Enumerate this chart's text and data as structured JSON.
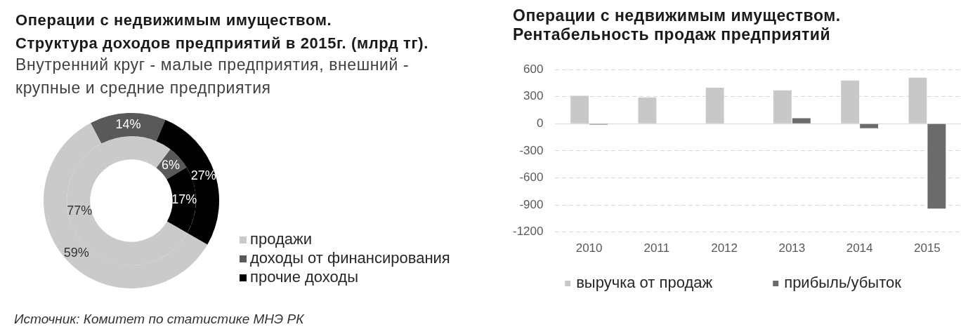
{
  "chart_data": [
    {
      "type": "donut",
      "title": "Операции с недвижимым имуществом.\nСтруктура доходов предприятий в 2015г. (млрд тг).",
      "subtitle": "Внутренний круг - малые предприятия, внешний - крупные и средние предприятия",
      "categories": [
        "продажи",
        "доходы от финансирования",
        "прочие доходы"
      ],
      "colors": [
        "#cacaca",
        "#595959",
        "#000000"
      ],
      "series": [
        {
          "values": [
            77,
            6,
            17
          ],
          "value_labels": [
            "77%",
            "6%",
            "17%"
          ]
        },
        {
          "values": [
            59,
            14,
            27
          ],
          "value_labels": [
            "59%",
            "14%",
            "27%"
          ]
        }
      ],
      "legend": "bottom right",
      "annotations": [
        "Источник: Комитет по статистике МНЭ РК"
      ]
    },
    {
      "type": "bar",
      "title": "Операции с недвижимым имуществом.\nРентабельность продаж предприятий",
      "categories": [
        "2010",
        "2011",
        "2012",
        "2013",
        "2014",
        "2015"
      ],
      "series": [
        {
          "name": "выручка от продаж",
          "color": "#c8c8c8",
          "values": [
            310,
            290,
            400,
            370,
            480,
            510
          ]
        },
        {
          "name": "прибыль/убыток",
          "color": "#6b6b6b",
          "values": [
            -10,
            0,
            0,
            60,
            -50,
            -940
          ]
        }
      ],
      "ylim": [
        -1200,
        600
      ],
      "yticks": [
        -1200,
        -900,
        -600,
        -300,
        0,
        300,
        600
      ],
      "grid": "y",
      "legend": "bottom"
    }
  ]
}
